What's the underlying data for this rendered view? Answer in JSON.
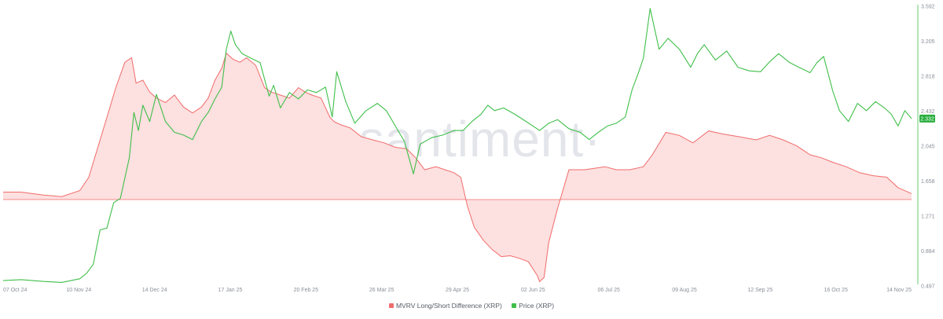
{
  "chart_data": {
    "type": "line",
    "watermark": "·santiment·",
    "x_ticks": [
      "07 Oct 24",
      "10 Nov 24",
      "14 Dec 24",
      "17 Jan 25",
      "20 Feb 25",
      "26 Mar 25",
      "29 Apr 25",
      "02 Jun 25",
      "06 Jul 25",
      "09 Aug 25",
      "12 Sep 25",
      "16 Oct 25",
      "14 Nov 25"
    ],
    "y_right_ticks": [
      "3.592",
      "3.205",
      "2.818",
      "2.432",
      "2.045",
      "1.658",
      "1.271",
      "0.884",
      "0.497"
    ],
    "ylim_price": [
      0.497,
      3.592
    ],
    "current_price_label": "2.332",
    "colors": {
      "price": "#3fbf4a",
      "mvrv": "#f06b6b",
      "mvrv_fill": "#fde0e0",
      "badge": "#27ae3e"
    },
    "series": [
      {
        "name": "MVRV Long/Short Difference (XRP)",
        "baseline_value": 0,
        "comment_units": "relative units (axis not labeled); values roughly -1..1",
        "x": [
          "2024-10-07",
          "2024-10-15",
          "2024-10-25",
          "2024-11-02",
          "2024-11-10",
          "2024-11-14",
          "2024-11-18",
          "2024-11-22",
          "2024-11-26",
          "2024-11-30",
          "2024-12-03",
          "2024-12-05",
          "2024-12-08",
          "2024-12-11",
          "2024-12-14",
          "2024-12-18",
          "2024-12-22",
          "2024-12-26",
          "2024-12-30",
          "2025-01-03",
          "2025-01-06",
          "2025-01-09",
          "2025-01-12",
          "2025-01-14",
          "2025-01-17",
          "2025-01-20",
          "2025-01-23",
          "2025-01-27",
          "2025-01-31",
          "2025-02-03",
          "2025-02-07",
          "2025-02-11",
          "2025-02-15",
          "2025-02-18",
          "2025-02-21",
          "2025-02-25",
          "2025-03-01",
          "2025-03-03",
          "2025-03-06",
          "2025-03-10",
          "2025-03-15",
          "2025-03-20",
          "2025-03-25",
          "2025-03-30",
          "2025-04-04",
          "2025-04-08",
          "2025-04-12",
          "2025-04-17",
          "2025-04-21",
          "2025-04-25",
          "2025-04-28",
          "2025-05-01",
          "2025-05-04",
          "2025-05-08",
          "2025-05-12",
          "2025-05-16",
          "2025-05-20",
          "2025-05-24",
          "2025-05-28",
          "2025-06-01",
          "2025-06-02",
          "2025-06-04",
          "2025-06-06",
          "2025-06-10",
          "2025-06-15",
          "2025-06-22",
          "2025-07-01",
          "2025-07-06",
          "2025-07-12",
          "2025-07-18",
          "2025-07-22",
          "2025-07-28",
          "2025-08-03",
          "2025-08-09",
          "2025-08-16",
          "2025-08-22",
          "2025-08-30",
          "2025-09-06",
          "2025-09-12",
          "2025-09-18",
          "2025-09-24",
          "2025-09-30",
          "2025-10-05",
          "2025-10-10",
          "2025-10-16",
          "2025-10-22",
          "2025-10-28",
          "2025-11-03",
          "2025-11-08",
          "2025-11-14"
        ],
        "values": [
          0.05,
          0.05,
          0.03,
          0.02,
          0.06,
          0.15,
          0.35,
          0.55,
          0.75,
          0.92,
          0.95,
          0.78,
          0.8,
          0.72,
          0.68,
          0.65,
          0.7,
          0.62,
          0.58,
          0.62,
          0.68,
          0.8,
          0.88,
          0.98,
          0.94,
          0.92,
          0.95,
          0.9,
          0.75,
          0.72,
          0.7,
          0.68,
          0.75,
          0.72,
          0.7,
          0.68,
          0.55,
          0.52,
          0.5,
          0.48,
          0.42,
          0.4,
          0.38,
          0.35,
          0.34,
          0.28,
          0.2,
          0.22,
          0.2,
          0.18,
          0.15,
          -0.08,
          -0.32,
          -0.47,
          -0.58,
          -0.66,
          -0.65,
          -0.68,
          -0.72,
          -0.88,
          -0.95,
          -0.9,
          -0.5,
          -0.1,
          0.2,
          0.2,
          0.22,
          0.2,
          0.2,
          0.22,
          0.3,
          0.45,
          0.43,
          0.38,
          0.46,
          0.44,
          0.42,
          0.4,
          0.43,
          0.4,
          0.36,
          0.3,
          0.28,
          0.25,
          0.22,
          0.18,
          0.16,
          0.15,
          0.08,
          0.04
        ]
      },
      {
        "name": "Price (XRP)",
        "x": [
          "2024-10-07",
          "2024-10-15",
          "2024-10-25",
          "2024-11-02",
          "2024-11-10",
          "2024-11-13",
          "2024-11-16",
          "2024-11-19",
          "2024-11-22",
          "2024-11-25",
          "2024-11-28",
          "2024-12-02",
          "2024-12-04",
          "2024-12-06",
          "2024-12-08",
          "2024-12-11",
          "2024-12-14",
          "2024-12-18",
          "2024-12-22",
          "2024-12-26",
          "2024-12-30",
          "2025-01-03",
          "2025-01-06",
          "2025-01-09",
          "2025-01-12",
          "2025-01-14",
          "2025-01-16",
          "2025-01-18",
          "2025-01-21",
          "2025-01-25",
          "2025-01-29",
          "2025-02-02",
          "2025-02-04",
          "2025-02-07",
          "2025-02-11",
          "2025-02-15",
          "2025-02-19",
          "2025-02-23",
          "2025-02-27",
          "2025-03-02",
          "2025-03-04",
          "2025-03-08",
          "2025-03-12",
          "2025-03-17",
          "2025-03-22",
          "2025-03-26",
          "2025-03-30",
          "2025-04-03",
          "2025-04-07",
          "2025-04-10",
          "2025-04-15",
          "2025-04-20",
          "2025-04-25",
          "2025-04-29",
          "2025-05-03",
          "2025-05-07",
          "2025-05-10",
          "2025-05-13",
          "2025-05-17",
          "2025-05-22",
          "2025-05-27",
          "2025-06-02",
          "2025-06-06",
          "2025-06-10",
          "2025-06-15",
          "2025-06-20",
          "2025-06-24",
          "2025-06-28",
          "2025-07-02",
          "2025-07-06",
          "2025-07-10",
          "2025-07-13",
          "2025-07-16",
          "2025-07-18",
          "2025-07-21",
          "2025-07-25",
          "2025-07-29",
          "2025-08-03",
          "2025-08-08",
          "2025-08-11",
          "2025-08-14",
          "2025-08-19",
          "2025-08-24",
          "2025-08-29",
          "2025-09-03",
          "2025-09-08",
          "2025-09-12",
          "2025-09-16",
          "2025-09-21",
          "2025-09-25",
          "2025-09-30",
          "2025-10-03",
          "2025-10-06",
          "2025-10-10",
          "2025-10-13",
          "2025-10-17",
          "2025-10-21",
          "2025-10-25",
          "2025-10-29",
          "2025-11-02",
          "2025-11-05",
          "2025-11-08",
          "2025-11-11",
          "2025-11-14"
        ],
        "values": [
          0.54,
          0.55,
          0.53,
          0.52,
          0.56,
          0.62,
          0.72,
          1.1,
          1.12,
          1.4,
          1.45,
          1.9,
          2.4,
          2.2,
          2.48,
          2.3,
          2.6,
          2.3,
          2.18,
          2.15,
          2.1,
          2.3,
          2.4,
          2.55,
          2.68,
          3.1,
          3.3,
          3.15,
          3.05,
          3.0,
          2.95,
          2.58,
          2.7,
          2.45,
          2.62,
          2.55,
          2.65,
          2.62,
          2.68,
          2.35,
          2.85,
          2.52,
          2.28,
          2.42,
          2.5,
          2.42,
          2.25,
          2.08,
          1.72,
          2.05,
          2.12,
          2.15,
          2.2,
          2.2,
          2.3,
          2.38,
          2.48,
          2.42,
          2.45,
          2.38,
          2.3,
          2.2,
          2.28,
          2.32,
          2.22,
          2.18,
          2.1,
          2.18,
          2.25,
          2.28,
          2.35,
          2.65,
          2.85,
          3.0,
          3.55,
          3.1,
          3.22,
          3.1,
          2.9,
          3.05,
          3.15,
          2.98,
          3.08,
          2.9,
          2.86,
          2.85,
          2.96,
          3.05,
          2.95,
          2.9,
          2.84,
          2.95,
          3.02,
          2.64,
          2.42,
          2.3,
          2.5,
          2.42,
          2.52,
          2.45,
          2.38,
          2.25,
          2.42,
          2.332
        ]
      }
    ],
    "legend": "bottom-center",
    "grid": false
  },
  "legend": {
    "items": [
      {
        "label": "MVRV Long/Short Difference (XRP)",
        "color": "#f06b6b"
      },
      {
        "label": "Price (XRP)",
        "color": "#3fbf4a"
      }
    ]
  }
}
